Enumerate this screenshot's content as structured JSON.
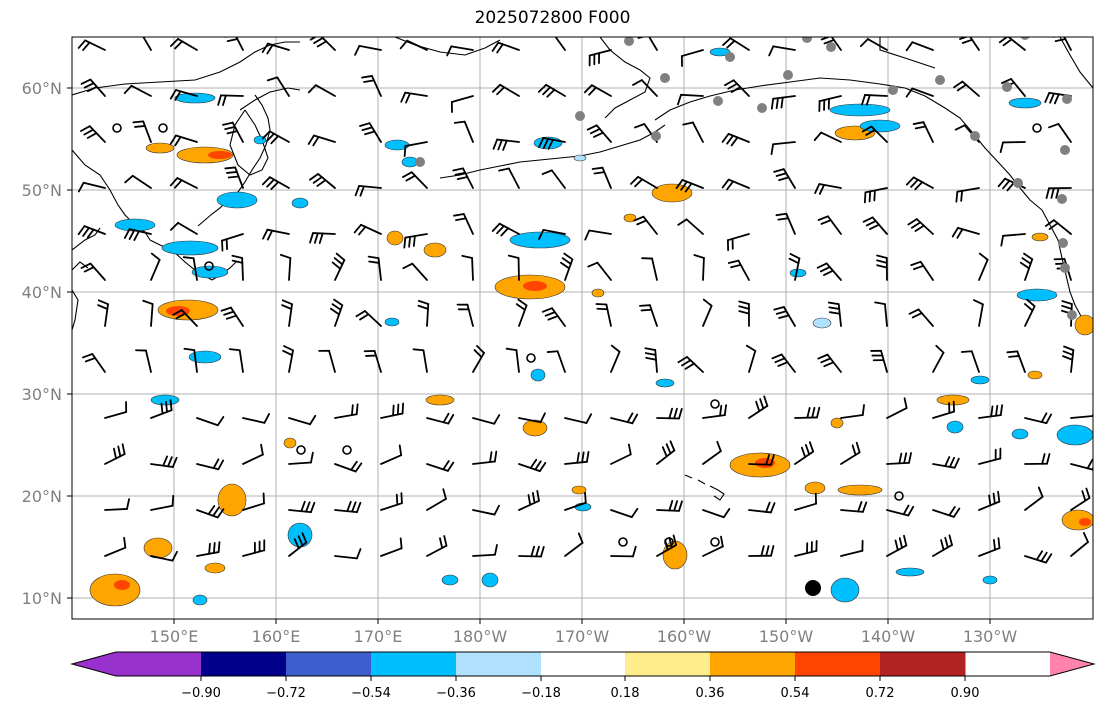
{
  "title": "2025072800 F000",
  "map": {
    "lon_labels": [
      "150°E",
      "160°E",
      "170°E",
      "180°W",
      "170°W",
      "160°W",
      "150°W",
      "140°W",
      "130°W"
    ],
    "lat_labels": [
      "10°N",
      "20°N",
      "30°N",
      "40°N",
      "50°N",
      "60°N"
    ],
    "grid": true
  },
  "colorbar": {
    "colors": [
      "#9932CC",
      "#00008B",
      "#3A5FCD",
      "#00BFFF",
      "#B0E2FF",
      "#FFFFFF",
      "#FFEC8B",
      "#FFA500",
      "#FF4500",
      "#B22222",
      "#FF82AB"
    ],
    "tick_labels": [
      "−0.90",
      "−0.72",
      "−0.54",
      "−0.36",
      "−0.18",
      "0.18",
      "0.36",
      "0.54",
      "0.72",
      "0.90"
    ]
  }
}
